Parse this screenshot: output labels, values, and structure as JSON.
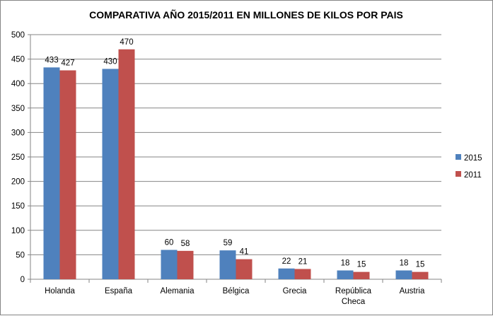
{
  "chart_data": {
    "type": "bar",
    "title": "COMPARATIVA AÑO 2015/2011 EN MILLONES DE KILOS POR PAIS",
    "xlabel": "",
    "ylabel": "",
    "ylim": [
      0,
      500
    ],
    "yticks": [
      0,
      50,
      100,
      150,
      200,
      250,
      300,
      350,
      400,
      450,
      500
    ],
    "grid": true,
    "legend_position": "right",
    "categories": [
      [
        "Holanda"
      ],
      [
        "España"
      ],
      [
        "Alemania"
      ],
      [
        "Bélgica"
      ],
      [
        "Grecia"
      ],
      [
        "República",
        "Checa"
      ],
      [
        "Austria"
      ]
    ],
    "series": [
      {
        "name": "2015",
        "color": "#4f81bd",
        "values": [
          433,
          430,
          60,
          59,
          22,
          18,
          18
        ]
      },
      {
        "name": "2011",
        "color": "#c0504d",
        "values": [
          427,
          470,
          58,
          41,
          21,
          15,
          15
        ]
      }
    ]
  }
}
